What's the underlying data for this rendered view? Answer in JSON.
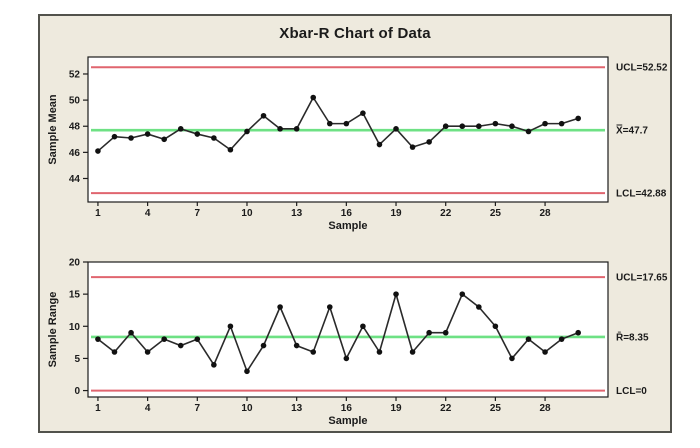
{
  "title": "Xbar-R Chart of Data",
  "colors": {
    "page_background": "#ffffff",
    "frame_background": "#eeeade",
    "frame_border": "#52524c",
    "plot_background": "#ffffff",
    "plot_border": "#1c1c1c",
    "control_limit": "#e0656f",
    "center_line": "#6ee184",
    "series": "#2a2a2a",
    "marker": "#111111",
    "text": "#1b1b1b"
  },
  "chart_data": [
    {
      "type": "line",
      "name": "xbar-chart",
      "xlabel": "Sample",
      "ylabel": "Sample Mean",
      "x": [
        1,
        2,
        3,
        4,
        5,
        6,
        7,
        8,
        9,
        10,
        11,
        12,
        13,
        14,
        15,
        16,
        17,
        18,
        19,
        20,
        21,
        22,
        23,
        24,
        25,
        26,
        27,
        28,
        29,
        30
      ],
      "values": [
        46.1,
        47.2,
        47.1,
        47.4,
        47.0,
        47.8,
        47.4,
        47.1,
        46.2,
        47.6,
        48.8,
        47.8,
        47.8,
        50.2,
        48.2,
        48.2,
        49.0,
        46.6,
        47.8,
        46.4,
        46.8,
        48.0,
        48.0,
        48.0,
        48.2,
        48.0,
        47.6,
        48.2,
        48.2,
        48.6
      ],
      "xticks": [
        1,
        4,
        7,
        10,
        13,
        16,
        19,
        22,
        25,
        28
      ],
      "yticks": [
        44,
        46,
        48,
        50,
        52
      ],
      "xlim": [
        0.4,
        31.8
      ],
      "ylim": [
        42.2,
        53.3
      ],
      "grid": false,
      "legend": "none",
      "reference_lines": {
        "ucl": {
          "value": 52.52,
          "label": "UCL=52.52"
        },
        "center": {
          "value": 47.7,
          "label": "X̿=47.7"
        },
        "lcl": {
          "value": 42.88,
          "label": "LCL=42.88"
        }
      }
    },
    {
      "type": "line",
      "name": "r-chart",
      "xlabel": "Sample",
      "ylabel": "Sample Range",
      "x": [
        1,
        2,
        3,
        4,
        5,
        6,
        7,
        8,
        9,
        10,
        11,
        12,
        13,
        14,
        15,
        16,
        17,
        18,
        19,
        20,
        21,
        22,
        23,
        24,
        25,
        26,
        27,
        28,
        29,
        30
      ],
      "values": [
        8,
        6,
        9,
        6,
        8,
        7,
        8,
        4,
        10,
        3,
        7,
        13,
        7,
        6,
        13,
        5,
        10,
        6,
        15,
        6,
        9,
        9,
        15,
        13,
        10,
        5,
        8,
        6,
        8,
        9
      ],
      "xticks": [
        1,
        4,
        7,
        10,
        13,
        16,
        19,
        22,
        25,
        28
      ],
      "yticks": [
        0,
        5,
        10,
        15,
        20
      ],
      "xlim": [
        0.4,
        31.8
      ],
      "ylim": [
        -1,
        20
      ],
      "grid": false,
      "legend": "none",
      "reference_lines": {
        "ucl": {
          "value": 17.65,
          "label": "UCL=17.65"
        },
        "center": {
          "value": 8.35,
          "label": "R̄=8.35"
        },
        "lcl": {
          "value": 0,
          "label": "LCL=0"
        }
      }
    }
  ]
}
